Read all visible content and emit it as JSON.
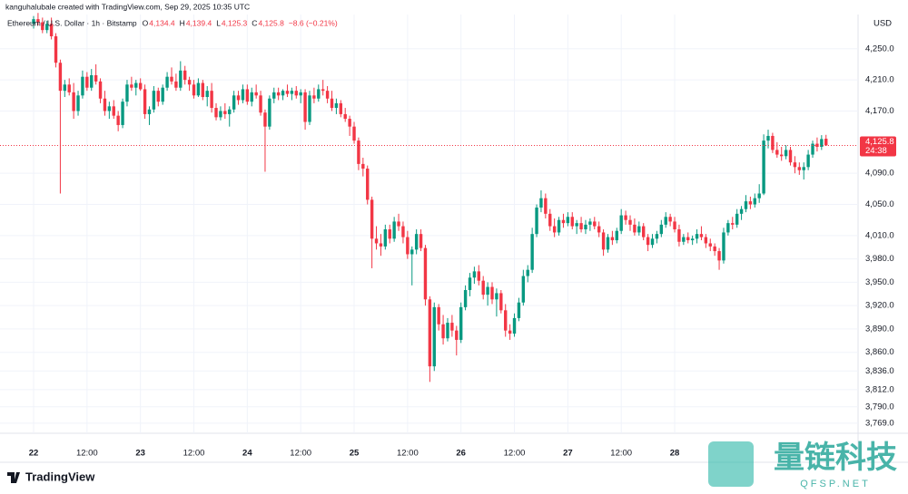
{
  "chart_data": {
    "type": "candlestick",
    "attribution": "kanguhalubale created with TradingView.com, Sep 29, 2025 10:35 UTC",
    "symbol": "Ethereum / U.S. Dollar · 1h · Bitstamp",
    "legend": {
      "o_label": "O",
      "o": "4,134.4",
      "h_label": "H",
      "h": "4,139.4",
      "l_label": "L",
      "l": "4,125.3",
      "c_label": "C",
      "c": "4,125.8",
      "change": "−8.6 (−0.21%)"
    },
    "currency": "USD",
    "last_price_label": "4,125.8",
    "countdown": "24:38",
    "logo": "TradingView",
    "watermark": {
      "title": "量链科技",
      "site": "QFSP.NET"
    },
    "up_color": "#089981",
    "down_color": "#f23645",
    "grid": true,
    "ylim": [
      3756,
      4294
    ],
    "yticks": [
      {
        "value": 4250,
        "label": "4,250.0"
      },
      {
        "value": 4210,
        "label": "4,210.0"
      },
      {
        "value": 4170,
        "label": "4,170.0"
      },
      {
        "value": 4090,
        "label": "4,090.0"
      },
      {
        "value": 4050,
        "label": "4,050.0"
      },
      {
        "value": 4010,
        "label": "4,010.0"
      },
      {
        "value": 3980,
        "label": "3,980.0"
      },
      {
        "value": 3950,
        "label": "3,950.0"
      },
      {
        "value": 3920,
        "label": "3,920.0"
      },
      {
        "value": 3890,
        "label": "3,890.0"
      },
      {
        "value": 3860,
        "label": "3,860.0"
      },
      {
        "value": 3836,
        "label": "3,836.0"
      },
      {
        "value": 3812,
        "label": "3,812.0"
      },
      {
        "value": 3790,
        "label": "3,790.0"
      },
      {
        "value": 3769,
        "label": "3,769.0"
      }
    ],
    "xticks": [
      {
        "value": 0,
        "label": "22"
      },
      {
        "value": 12,
        "label": "12:00"
      },
      {
        "value": 24,
        "label": "23"
      },
      {
        "value": 36,
        "label": "12:00"
      },
      {
        "value": 48,
        "label": "24"
      },
      {
        "value": 60,
        "label": "12:00"
      },
      {
        "value": 72,
        "label": "25"
      },
      {
        "value": 84,
        "label": "12:00"
      },
      {
        "value": 96,
        "label": "26"
      },
      {
        "value": 108,
        "label": "12:00"
      },
      {
        "value": 120,
        "label": "27"
      },
      {
        "value": 132,
        "label": "12:00"
      },
      {
        "value": 144,
        "label": "28"
      }
    ],
    "ohlc": [
      [
        4282,
        4292,
        4276,
        4288
      ],
      [
        4288,
        4296,
        4280,
        4284
      ],
      [
        4284,
        4290,
        4270,
        4274
      ],
      [
        4274,
        4286,
        4270,
        4282
      ],
      [
        4282,
        4290,
        4262,
        4266
      ],
      [
        4266,
        4270,
        4226,
        4232
      ],
      [
        4232,
        4236,
        4064,
        4196
      ],
      [
        4196,
        4210,
        4188,
        4204
      ],
      [
        4204,
        4212,
        4190,
        4194
      ],
      [
        4194,
        4206,
        4160,
        4170
      ],
      [
        4170,
        4196,
        4164,
        4190
      ],
      [
        4190,
        4222,
        4186,
        4214
      ],
      [
        4214,
        4220,
        4196,
        4200
      ],
      [
        4200,
        4224,
        4196,
        4216
      ],
      [
        4216,
        4230,
        4204,
        4208
      ],
      [
        4208,
        4212,
        4180,
        4186
      ],
      [
        4186,
        4196,
        4164,
        4170
      ],
      [
        4170,
        4182,
        4160,
        4176
      ],
      [
        4176,
        4184,
        4160,
        4164
      ],
      [
        4164,
        4170,
        4144,
        4152
      ],
      [
        4152,
        4186,
        4148,
        4182
      ],
      [
        4182,
        4210,
        4176,
        4204
      ],
      [
        4204,
        4214,
        4196,
        4200
      ],
      [
        4200,
        4210,
        4190,
        4206
      ],
      [
        4206,
        4212,
        4196,
        4198
      ],
      [
        4198,
        4204,
        4160,
        4166
      ],
      [
        4166,
        4176,
        4152,
        4172
      ],
      [
        4172,
        4202,
        4168,
        4196
      ],
      [
        4196,
        4200,
        4176,
        4182
      ],
      [
        4182,
        4204,
        4178,
        4200
      ],
      [
        4200,
        4220,
        4196,
        4214
      ],
      [
        4214,
        4226,
        4204,
        4208
      ],
      [
        4208,
        4218,
        4196,
        4200
      ],
      [
        4200,
        4234,
        4196,
        4222
      ],
      [
        4222,
        4228,
        4204,
        4210
      ],
      [
        4210,
        4214,
        4196,
        4204
      ],
      [
        4204,
        4210,
        4186,
        4190
      ],
      [
        4190,
        4212,
        4188,
        4206
      ],
      [
        4206,
        4210,
        4184,
        4188
      ],
      [
        4188,
        4202,
        4176,
        4196
      ],
      [
        4196,
        4206,
        4168,
        4174
      ],
      [
        4174,
        4180,
        4158,
        4162
      ],
      [
        4162,
        4176,
        4158,
        4170
      ],
      [
        4170,
        4180,
        4160,
        4166
      ],
      [
        4166,
        4176,
        4150,
        4172
      ],
      [
        4172,
        4196,
        4168,
        4190
      ],
      [
        4190,
        4196,
        4178,
        4184
      ],
      [
        4184,
        4204,
        4180,
        4198
      ],
      [
        4198,
        4204,
        4178,
        4182
      ],
      [
        4182,
        4200,
        4176,
        4194
      ],
      [
        4194,
        4204,
        4186,
        4190
      ],
      [
        4190,
        4196,
        4164,
        4168
      ],
      [
        4168,
        4172,
        4092,
        4150
      ],
      [
        4150,
        4190,
        4146,
        4186
      ],
      [
        4186,
        4200,
        4180,
        4194
      ],
      [
        4194,
        4200,
        4184,
        4190
      ],
      [
        4190,
        4198,
        4184,
        4196
      ],
      [
        4196,
        4204,
        4188,
        4192
      ],
      [
        4192,
        4200,
        4184,
        4196
      ],
      [
        4196,
        4202,
        4186,
        4190
      ],
      [
        4190,
        4198,
        4180,
        4194
      ],
      [
        4194,
        4198,
        4146,
        4156
      ],
      [
        4156,
        4196,
        4152,
        4190
      ],
      [
        4190,
        4200,
        4180,
        4186
      ],
      [
        4186,
        4204,
        4182,
        4198
      ],
      [
        4198,
        4210,
        4190,
        4196
      ],
      [
        4196,
        4202,
        4180,
        4186
      ],
      [
        4186,
        4196,
        4170,
        4174
      ],
      [
        4174,
        4186,
        4166,
        4180
      ],
      [
        4180,
        4184,
        4162,
        4166
      ],
      [
        4166,
        4174,
        4156,
        4160
      ],
      [
        4160,
        4164,
        4138,
        4150
      ],
      [
        4150,
        4156,
        4128,
        4132
      ],
      [
        4132,
        4136,
        4094,
        4102
      ],
      [
        4102,
        4110,
        4086,
        4096
      ],
      [
        4096,
        4100,
        4050,
        4056
      ],
      [
        4056,
        4060,
        3968,
        4006
      ],
      [
        4006,
        4022,
        3992,
        4000
      ],
      [
        4000,
        4012,
        3984,
        3996
      ],
      [
        3996,
        4024,
        3992,
        4018
      ],
      [
        4018,
        4024,
        4000,
        4006
      ],
      [
        4006,
        4034,
        4002,
        4028
      ],
      [
        4028,
        4038,
        4016,
        4022
      ],
      [
        4022,
        4028,
        4000,
        4008
      ],
      [
        4008,
        4016,
        3980,
        3986
      ],
      [
        3986,
        3996,
        3946,
        3992
      ],
      [
        3992,
        4018,
        3986,
        4012
      ],
      [
        4012,
        4018,
        3990,
        3994
      ],
      [
        3994,
        3998,
        3920,
        3928
      ],
      [
        3928,
        3932,
        3822,
        3842
      ],
      [
        3842,
        3924,
        3836,
        3918
      ],
      [
        3918,
        3922,
        3888,
        3896
      ],
      [
        3896,
        3908,
        3870,
        3878
      ],
      [
        3878,
        3904,
        3874,
        3898
      ],
      [
        3898,
        3908,
        3880,
        3888
      ],
      [
        3888,
        3894,
        3856,
        3876
      ],
      [
        3876,
        3924,
        3872,
        3918
      ],
      [
        3918,
        3946,
        3914,
        3940
      ],
      [
        3940,
        3962,
        3932,
        3956
      ],
      [
        3956,
        3970,
        3948,
        3964
      ],
      [
        3964,
        3972,
        3946,
        3952
      ],
      [
        3952,
        3958,
        3928,
        3934
      ],
      [
        3934,
        3950,
        3920,
        3944
      ],
      [
        3944,
        3950,
        3922,
        3928
      ],
      [
        3928,
        3942,
        3906,
        3936
      ],
      [
        3936,
        3940,
        3910,
        3914
      ],
      [
        3914,
        3922,
        3880,
        3888
      ],
      [
        3888,
        3896,
        3876,
        3884
      ],
      [
        3884,
        3910,
        3880,
        3904
      ],
      [
        3904,
        3930,
        3900,
        3924
      ],
      [
        3924,
        3966,
        3920,
        3958
      ],
      [
        3958,
        3972,
        3950,
        3966
      ],
      [
        3966,
        4020,
        3962,
        4012
      ],
      [
        4012,
        4050,
        4008,
        4046
      ],
      [
        4046,
        4068,
        4040,
        4058
      ],
      [
        4058,
        4064,
        4032,
        4038
      ],
      [
        4038,
        4044,
        4016,
        4022
      ],
      [
        4022,
        4032,
        4008,
        4014
      ],
      [
        4014,
        4034,
        4010,
        4030
      ],
      [
        4030,
        4038,
        4020,
        4026
      ],
      [
        4026,
        4040,
        4022,
        4034
      ],
      [
        4034,
        4040,
        4018,
        4022
      ],
      [
        4022,
        4030,
        4012,
        4026
      ],
      [
        4026,
        4034,
        4014,
        4018
      ],
      [
        4018,
        4030,
        4012,
        4024
      ],
      [
        4024,
        4032,
        4016,
        4028
      ],
      [
        4028,
        4034,
        4018,
        4022
      ],
      [
        4022,
        4028,
        4008,
        4014
      ],
      [
        4014,
        4018,
        3984,
        3992
      ],
      [
        3992,
        4012,
        3988,
        4008
      ],
      [
        4008,
        4016,
        3998,
        4004
      ],
      [
        4004,
        4020,
        4000,
        4016
      ],
      [
        4016,
        4044,
        4012,
        4036
      ],
      [
        4036,
        4042,
        4024,
        4030
      ],
      [
        4030,
        4036,
        4016,
        4024
      ],
      [
        4024,
        4032,
        4010,
        4014
      ],
      [
        4014,
        4028,
        4010,
        4022
      ],
      [
        4022,
        4026,
        4004,
        4008
      ],
      [
        4008,
        4012,
        3990,
        3998
      ],
      [
        3998,
        4012,
        3994,
        4006
      ],
      [
        4006,
        4016,
        4000,
        4012
      ],
      [
        4012,
        4030,
        4008,
        4024
      ],
      [
        4024,
        4040,
        4020,
        4034
      ],
      [
        4034,
        4038,
        4022,
        4028
      ],
      [
        4028,
        4034,
        4014,
        4018
      ],
      [
        4018,
        4024,
        3996,
        4002
      ],
      [
        4002,
        4012,
        3998,
        4008
      ],
      [
        4008,
        4014,
        4000,
        4004
      ],
      [
        4004,
        4010,
        3998,
        4006
      ],
      [
        4006,
        4018,
        4000,
        4012
      ],
      [
        4012,
        4022,
        4004,
        4008
      ],
      [
        4008,
        4012,
        3994,
        4000
      ],
      [
        4000,
        4006,
        3990,
        3996
      ],
      [
        3996,
        4000,
        3984,
        3990
      ],
      [
        3990,
        3994,
        3966,
        3978
      ],
      [
        3978,
        4020,
        3974,
        4014
      ],
      [
        4014,
        4030,
        4010,
        4026
      ],
      [
        4026,
        4034,
        4018,
        4024
      ],
      [
        4024,
        4044,
        4020,
        4038
      ],
      [
        4038,
        4048,
        4030,
        4044
      ],
      [
        4044,
        4062,
        4040,
        4054
      ],
      [
        4054,
        4060,
        4044,
        4050
      ],
      [
        4050,
        4064,
        4046,
        4058
      ],
      [
        4058,
        4076,
        4052,
        4064
      ],
      [
        4064,
        4140,
        4062,
        4132
      ],
      [
        4132,
        4146,
        4122,
        4138
      ],
      [
        4138,
        4142,
        4116,
        4120
      ],
      [
        4120,
        4130,
        4110,
        4114
      ],
      [
        4114,
        4124,
        4106,
        4112
      ],
      [
        4112,
        4126,
        4108,
        4120
      ],
      [
        4120,
        4124,
        4100,
        4104
      ],
      [
        4104,
        4112,
        4090,
        4098
      ],
      [
        4098,
        4104,
        4088,
        4094
      ],
      [
        4094,
        4104,
        4082,
        4098
      ],
      [
        4098,
        4120,
        4094,
        4114
      ],
      [
        4114,
        4132,
        4110,
        4128
      ],
      [
        4128,
        4136,
        4118,
        4124
      ],
      [
        4124,
        4139,
        4120,
        4134
      ],
      [
        4134.4,
        4139.4,
        4125.3,
        4125.8
      ]
    ]
  }
}
